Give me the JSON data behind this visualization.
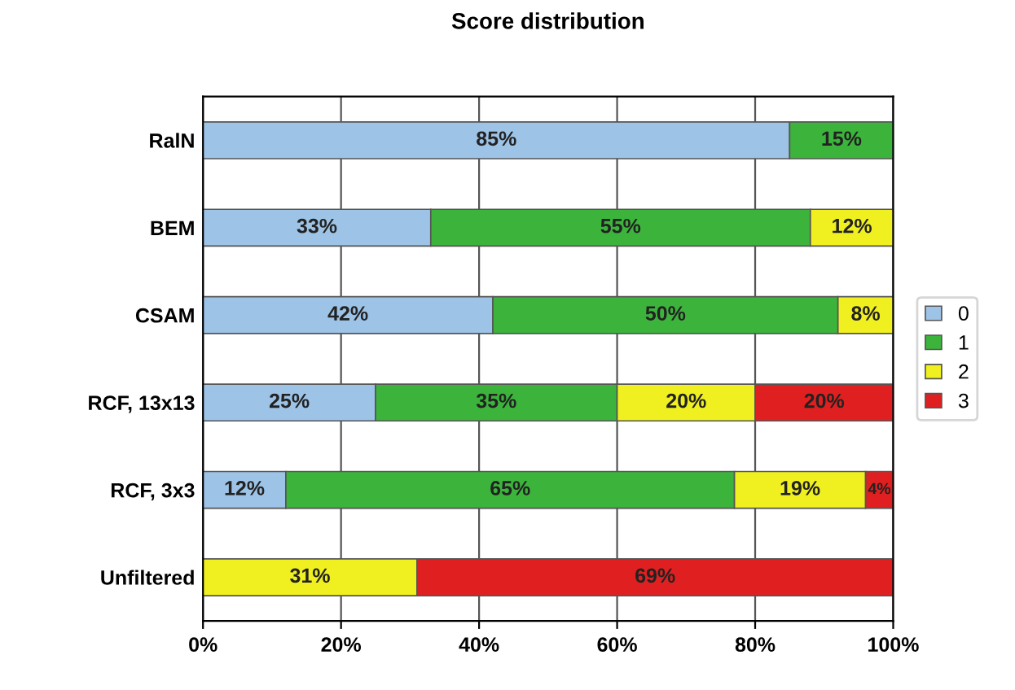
{
  "chart_data": {
    "type": "bar",
    "title": "Score distribution",
    "orientation": "horizontal",
    "stacked": true,
    "categories": [
      "RalN",
      "BEM",
      "CSAM",
      "RCF, 13x13",
      "RCF, 3x3",
      "Unfiltered"
    ],
    "series": [
      {
        "name": "0",
        "color": "#9dc3e6",
        "values": [
          85,
          33,
          42,
          25,
          12,
          null
        ],
        "value_labels": [
          "85%",
          "33%",
          "42%",
          "25%",
          "12%",
          null
        ]
      },
      {
        "name": "1",
        "color": "#3cb43c",
        "values": [
          15,
          55,
          50,
          35,
          65,
          null
        ],
        "value_labels": [
          "15%",
          "55%",
          "50%",
          "35%",
          "65%",
          null
        ]
      },
      {
        "name": "2",
        "color": "#f0f020",
        "values": [
          null,
          12,
          8,
          20,
          19,
          31
        ],
        "value_labels": [
          null,
          "12%",
          "8%",
          "20%",
          "19%",
          "31%"
        ]
      },
      {
        "name": "3",
        "color": "#e02020",
        "values": [
          null,
          null,
          null,
          20,
          4,
          69
        ],
        "value_labels": [
          null,
          null,
          null,
          "20%",
          "4%",
          "69%"
        ]
      }
    ],
    "xlim": [
      0,
      100
    ],
    "xticks": [
      {
        "value": 0,
        "label": "0%"
      },
      {
        "value": 20,
        "label": "20%"
      },
      {
        "value": 40,
        "label": "40%"
      },
      {
        "value": 60,
        "label": "60%"
      },
      {
        "value": 80,
        "label": "80%"
      },
      {
        "value": 100,
        "label": "100%"
      }
    ],
    "grid": "x",
    "legend": "right"
  }
}
